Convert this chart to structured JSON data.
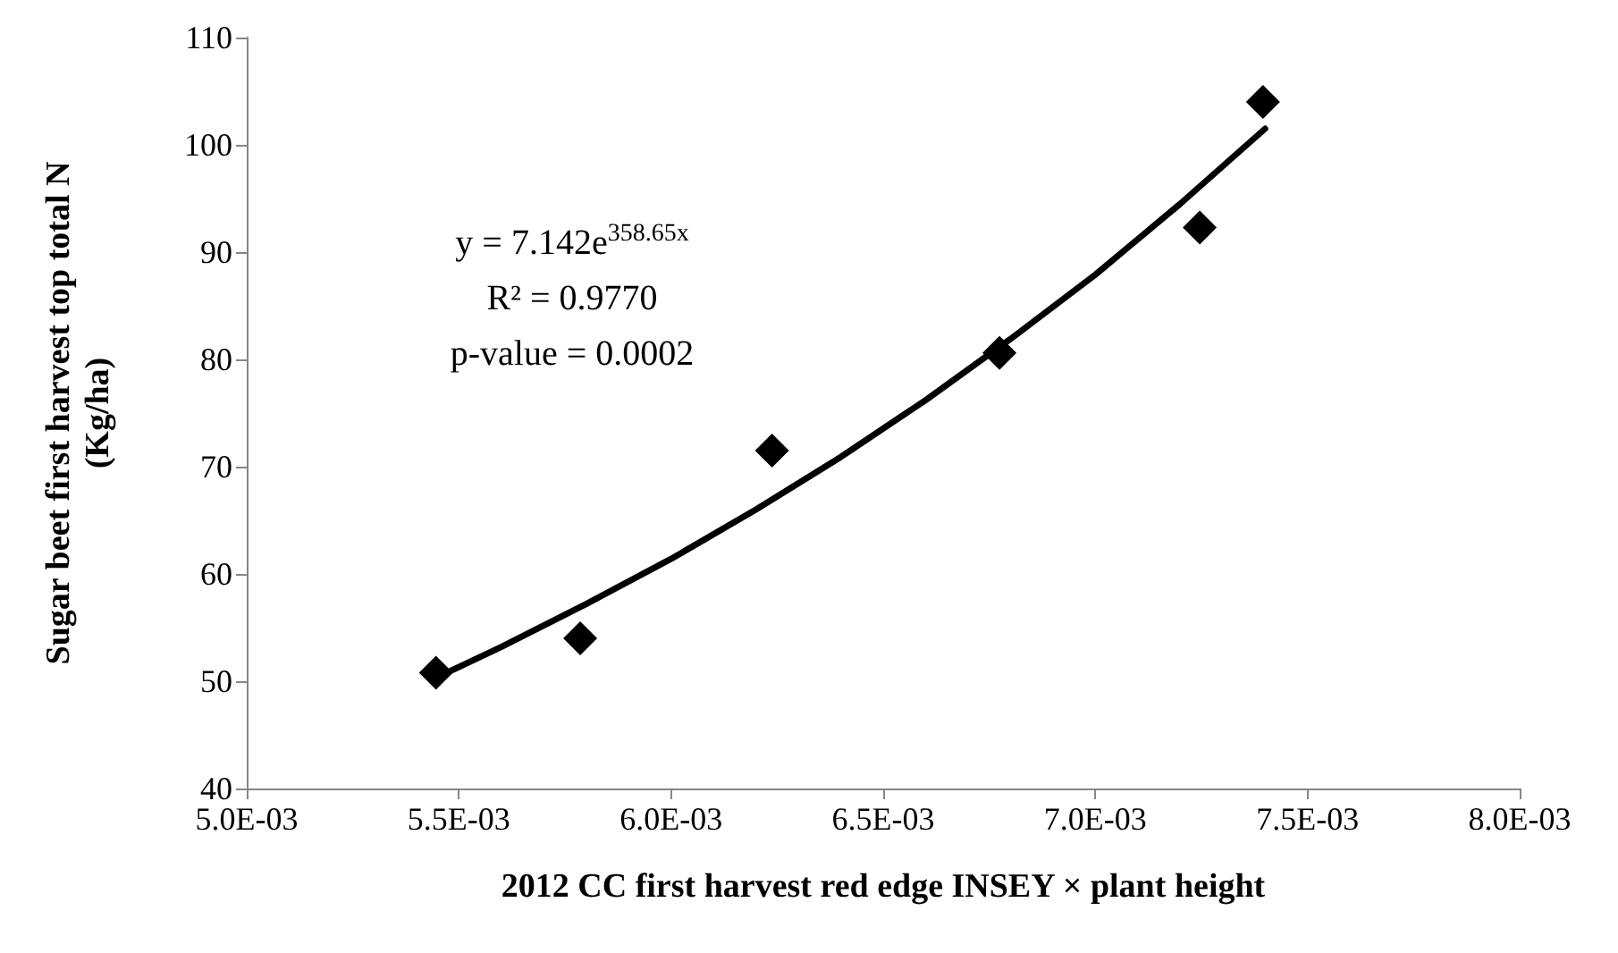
{
  "chart_data": {
    "type": "scatter",
    "xlabel": "2012 CC first harvest red edge INSEY × plant height",
    "ylabel": "Sugar beet first harvest top total N\n(Kg/ha)",
    "x": [
      0.005446,
      0.005786,
      0.006238,
      0.006774,
      0.007246,
      0.007395
    ],
    "series": [
      {
        "color": "#000000",
        "marker": "diamond",
        "values": [
          50.8,
          54.0,
          71.5,
          80.6,
          92.3,
          104.0
        ]
      },
      {
        "type": "line",
        "color": "#000000",
        "marker": "none",
        "line_style": "solid",
        "x": [
          0.00545,
          0.0056,
          0.0058,
          0.006,
          0.0062,
          0.0064,
          0.0066,
          0.0068,
          0.007,
          0.0072,
          0.0074
        ],
        "values": [
          50.4,
          53.2,
          57.2,
          61.4,
          66.0,
          70.9,
          76.2,
          81.9,
          87.9,
          94.5,
          101.5
        ]
      }
    ],
    "xlim": [
      0.005,
      0.008
    ],
    "xticks": [
      {
        "value": 0.005,
        "label": "5.0E-03"
      },
      {
        "value": 0.0055,
        "label": "5.5E-03"
      },
      {
        "value": 0.006,
        "label": "6.0E-03"
      },
      {
        "value": 0.0065,
        "label": "6.5E-03"
      },
      {
        "value": 0.007,
        "label": "7.0E-03"
      },
      {
        "value": 0.0075,
        "label": "7.5E-03"
      },
      {
        "value": 0.008,
        "label": "8.0E-03"
      }
    ],
    "ylim": [
      40,
      110
    ],
    "yticks": [
      40,
      50,
      60,
      70,
      80,
      90,
      100,
      110
    ],
    "grid": false,
    "annotations": [
      "y = 7.142e$^{358.65x}$",
      "R² = 0.9770",
      "p-value = 0.0002"
    ]
  }
}
